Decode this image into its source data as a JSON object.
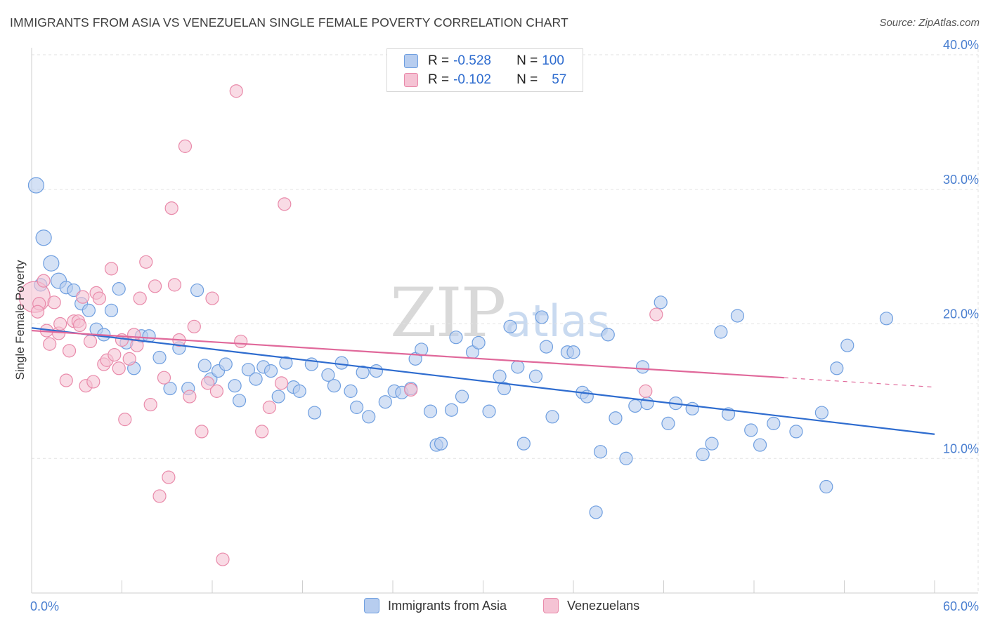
{
  "title": "IMMIGRANTS FROM ASIA VS VENEZUELAN SINGLE FEMALE POVERTY CORRELATION CHART",
  "source": "Source: ZipAtlas.com",
  "watermark": {
    "zip": "ZIP",
    "atlas": "atlas"
  },
  "legend": {
    "series1": {
      "r_label": "R = ",
      "r_value": "-0.528",
      "n_label": "N = ",
      "n_value": "100"
    },
    "series2": {
      "r_label": "R = ",
      "r_value": "-0.102",
      "n_label": "N = ",
      "n_value": "57"
    }
  },
  "bottom_legend": {
    "series1": "Immigrants from Asia",
    "series2": "Venezuelans"
  },
  "chart_data": {
    "type": "scatter",
    "title": "IMMIGRANTS FROM ASIA VS VENEZUELAN SINGLE FEMALE POVERTY CORRELATION CHART",
    "xlabel": "",
    "ylabel": "Single Female Poverty",
    "xlim": [
      0,
      60
    ],
    "ylim": [
      0,
      40
    ],
    "x_tick_labels": {
      "min": "0.0%",
      "max": "60.0%"
    },
    "y_ticks": [
      {
        "value": 10,
        "label": "10.0%"
      },
      {
        "value": 20,
        "label": "20.0%"
      },
      {
        "value": 30,
        "label": "30.0%"
      },
      {
        "value": 40,
        "label": "40.0%"
      }
    ],
    "series": [
      {
        "name": "Immigrants from Asia",
        "color": "#6f9fe0",
        "fill": "#b7cdef",
        "trend": {
          "x0": 0,
          "y0": 19.7,
          "x1": 60,
          "y1": 11.8
        },
        "points": [
          [
            0.3,
            30.3,
            2
          ],
          [
            0.8,
            26.4,
            2
          ],
          [
            1.3,
            24.5,
            2
          ],
          [
            1.8,
            23.2,
            2
          ],
          [
            2.3,
            22.7,
            1
          ],
          [
            2.8,
            22.5,
            1
          ],
          [
            3.3,
            21.5,
            1
          ],
          [
            3.8,
            21.0,
            1
          ],
          [
            4.3,
            19.6,
            1
          ],
          [
            4.8,
            19.2,
            1
          ],
          [
            5.3,
            21.0,
            1
          ],
          [
            5.8,
            22.6,
            1
          ],
          [
            6.3,
            18.6,
            1
          ],
          [
            6.8,
            16.7,
            1
          ],
          [
            7.3,
            19.1,
            1
          ],
          [
            7.8,
            19.1,
            1
          ],
          [
            8.5,
            17.5,
            1
          ],
          [
            9.2,
            15.2,
            1
          ],
          [
            9.8,
            18.2,
            1
          ],
          [
            10.4,
            15.2,
            1
          ],
          [
            11.0,
            22.5,
            1
          ],
          [
            11.5,
            16.9,
            1
          ],
          [
            11.9,
            15.9,
            1
          ],
          [
            12.4,
            16.5,
            1
          ],
          [
            12.9,
            17.0,
            1
          ],
          [
            13.5,
            15.4,
            1
          ],
          [
            13.8,
            14.3,
            1
          ],
          [
            14.4,
            16.6,
            1
          ],
          [
            14.9,
            15.9,
            1
          ],
          [
            15.4,
            16.8,
            1
          ],
          [
            15.9,
            16.5,
            1
          ],
          [
            16.4,
            14.6,
            1
          ],
          [
            16.9,
            17.1,
            1
          ],
          [
            17.4,
            15.3,
            1
          ],
          [
            17.8,
            15.0,
            1
          ],
          [
            18.6,
            17.0,
            1
          ],
          [
            18.8,
            13.4,
            1
          ],
          [
            19.7,
            16.2,
            1
          ],
          [
            20.1,
            15.4,
            1
          ],
          [
            20.6,
            17.1,
            1
          ],
          [
            21.2,
            15.0,
            1
          ],
          [
            21.6,
            13.8,
            1
          ],
          [
            22.0,
            16.4,
            1
          ],
          [
            22.4,
            13.1,
            1
          ],
          [
            22.9,
            16.5,
            1
          ],
          [
            23.5,
            14.2,
            1
          ],
          [
            24.1,
            15.0,
            1
          ],
          [
            24.6,
            14.9,
            1
          ],
          [
            25.2,
            15.2,
            1
          ],
          [
            25.5,
            17.4,
            1
          ],
          [
            25.9,
            18.1,
            1
          ],
          [
            26.5,
            13.5,
            1
          ],
          [
            26.9,
            11.0,
            1
          ],
          [
            27.2,
            11.1,
            1
          ],
          [
            27.9,
            13.6,
            1
          ],
          [
            28.2,
            19.0,
            1
          ],
          [
            28.6,
            14.6,
            1
          ],
          [
            29.3,
            17.9,
            1
          ],
          [
            29.7,
            18.6,
            1
          ],
          [
            30.4,
            13.5,
            1
          ],
          [
            31.1,
            16.1,
            1
          ],
          [
            31.4,
            15.2,
            1
          ],
          [
            31.8,
            19.8,
            1
          ],
          [
            32.3,
            16.8,
            1
          ],
          [
            32.7,
            11.1,
            1
          ],
          [
            33.5,
            16.1,
            1
          ],
          [
            33.9,
            20.5,
            1
          ],
          [
            34.2,
            18.3,
            1
          ],
          [
            34.6,
            13.1,
            1
          ],
          [
            35.6,
            17.9,
            1
          ],
          [
            36.0,
            17.9,
            1
          ],
          [
            36.6,
            14.9,
            1
          ],
          [
            36.9,
            14.6,
            1
          ],
          [
            37.5,
            6.0,
            1
          ],
          [
            37.8,
            10.5,
            1
          ],
          [
            38.3,
            19.2,
            1
          ],
          [
            38.8,
            13.0,
            1
          ],
          [
            39.5,
            10.0,
            1
          ],
          [
            40.1,
            13.9,
            1
          ],
          [
            40.6,
            16.8,
            1
          ],
          [
            40.9,
            14.1,
            1
          ],
          [
            41.8,
            21.6,
            1
          ],
          [
            42.3,
            12.6,
            1
          ],
          [
            42.8,
            14.1,
            1
          ],
          [
            43.9,
            13.7,
            1
          ],
          [
            44.6,
            10.3,
            1
          ],
          [
            45.2,
            11.1,
            1
          ],
          [
            45.8,
            19.4,
            1
          ],
          [
            46.3,
            13.3,
            1
          ],
          [
            46.9,
            20.6,
            1
          ],
          [
            47.8,
            12.1,
            1
          ],
          [
            48.4,
            11.0,
            1
          ],
          [
            49.3,
            12.6,
            1
          ],
          [
            50.8,
            12.0,
            1
          ],
          [
            52.5,
            13.4,
            1
          ],
          [
            52.8,
            7.9,
            1
          ],
          [
            53.5,
            16.7,
            1
          ],
          [
            54.2,
            18.4,
            1
          ],
          [
            56.8,
            20.4,
            1
          ],
          [
            0.6,
            22.9,
            1
          ]
        ]
      },
      {
        "name": "Venezuelans",
        "color": "#e98aaa",
        "fill": "#f5c3d4",
        "trend": {
          "x0": 0,
          "y0": 19.5,
          "x1": 50,
          "y1": 16.0,
          "dash_to_x": 60,
          "dash_to_y": 15.3
        },
        "points": [
          [
            0.2,
            22.0,
            3
          ],
          [
            0.5,
            21.5,
            1
          ],
          [
            0.8,
            23.2,
            1
          ],
          [
            1.0,
            19.5,
            1
          ],
          [
            1.2,
            18.5,
            1
          ],
          [
            1.5,
            21.6,
            1
          ],
          [
            1.8,
            19.3,
            1
          ],
          [
            1.9,
            20.0,
            1
          ],
          [
            2.3,
            15.8,
            1
          ],
          [
            2.5,
            18.0,
            1
          ],
          [
            2.8,
            20.2,
            1
          ],
          [
            3.1,
            20.2,
            1
          ],
          [
            3.4,
            22.0,
            1
          ],
          [
            3.6,
            15.4,
            1
          ],
          [
            3.9,
            18.7,
            1
          ],
          [
            4.1,
            15.7,
            1
          ],
          [
            4.3,
            22.3,
            1
          ],
          [
            4.5,
            21.9,
            1
          ],
          [
            4.8,
            17.0,
            1
          ],
          [
            5.0,
            17.3,
            1
          ],
          [
            5.3,
            24.1,
            1
          ],
          [
            5.5,
            17.7,
            1
          ],
          [
            5.8,
            16.7,
            1
          ],
          [
            6.0,
            18.8,
            1
          ],
          [
            6.2,
            12.9,
            1
          ],
          [
            6.5,
            17.4,
            1
          ],
          [
            6.8,
            19.2,
            1
          ],
          [
            7.0,
            18.4,
            1
          ],
          [
            7.2,
            21.9,
            1
          ],
          [
            7.6,
            24.6,
            1
          ],
          [
            7.9,
            14.0,
            1
          ],
          [
            8.2,
            22.8,
            1
          ],
          [
            8.5,
            7.2,
            1
          ],
          [
            8.8,
            16.0,
            1
          ],
          [
            9.1,
            8.6,
            1
          ],
          [
            9.3,
            28.6,
            1
          ],
          [
            9.5,
            22.9,
            1
          ],
          [
            9.8,
            18.8,
            1
          ],
          [
            10.2,
            33.2,
            1
          ],
          [
            10.5,
            14.6,
            1
          ],
          [
            10.8,
            19.8,
            1
          ],
          [
            11.3,
            12.0,
            1
          ],
          [
            11.7,
            15.6,
            1
          ],
          [
            12.0,
            21.9,
            1
          ],
          [
            12.3,
            15.0,
            1
          ],
          [
            12.7,
            2.5,
            1
          ],
          [
            13.6,
            37.3,
            1
          ],
          [
            13.9,
            18.7,
            1
          ],
          [
            15.3,
            12.0,
            1
          ],
          [
            15.8,
            13.8,
            1
          ],
          [
            16.6,
            15.6,
            1
          ],
          [
            16.8,
            28.9,
            1
          ],
          [
            25.2,
            15.1,
            1
          ],
          [
            40.8,
            15.0,
            1
          ],
          [
            41.5,
            20.7,
            1
          ],
          [
            0.4,
            20.9,
            1
          ],
          [
            3.2,
            19.9,
            1
          ]
        ]
      }
    ],
    "grid": true
  }
}
